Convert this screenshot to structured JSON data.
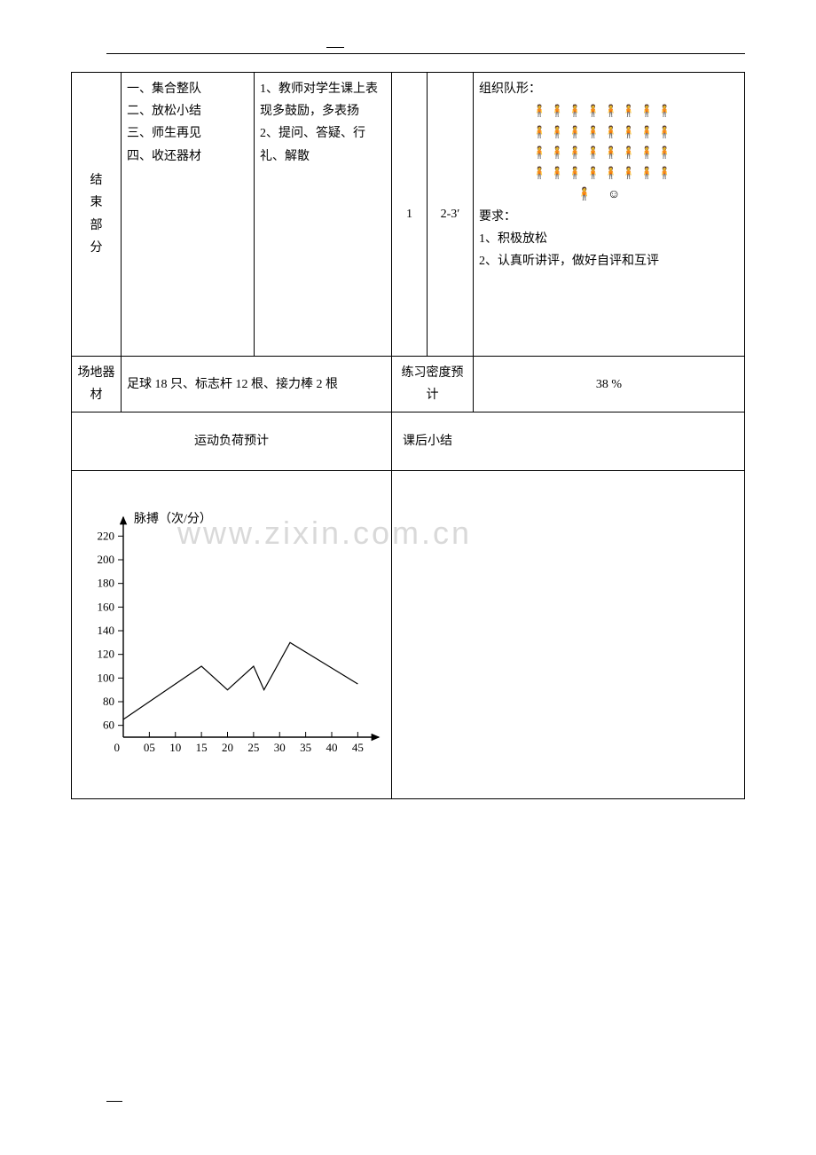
{
  "watermark": "www.zixin.com.cn",
  "row1": {
    "section_label": [
      "结",
      "束",
      "部",
      "分"
    ],
    "col2_lines": [
      "一、集合整队",
      "二、放松小结",
      "三、师生再见",
      "四、收还器材"
    ],
    "col3_lines": [
      "1、教师对学生课上表现多鼓励，多表扬",
      "2、提问、答疑、行礼、解散"
    ],
    "col4": "1",
    "col5": "2-3′",
    "formation_title": "组织队形：",
    "formation_rows": 4,
    "formation_per_row": 8,
    "person_glyph": "🧍",
    "teacher_glyph": "🧍",
    "face_glyph": "☺",
    "req_title": "要求：",
    "req_lines": [
      "1、积极放松",
      "2、认真听讲评，做好自评和互评"
    ]
  },
  "row2": {
    "label_left": "场地器材",
    "equipment": "足球 18 只、标志杆 12 根、接力棒 2 根",
    "label_mid": "练习密度预计",
    "density": "38 %"
  },
  "row3": {
    "label_left": "运动负荷预计",
    "label_right": "课后小结"
  },
  "chart": {
    "type": "line",
    "y_axis_label": "脉搏（次/分）",
    "y_ticks": [
      60,
      80,
      100,
      120,
      140,
      160,
      180,
      200,
      220
    ],
    "x_ticks": [
      0,
      "05",
      10,
      15,
      20,
      25,
      30,
      35,
      40,
      45
    ],
    "ylim": [
      50,
      230
    ],
    "xlim": [
      0,
      48
    ],
    "points": [
      {
        "x": 0,
        "y": 65
      },
      {
        "x": 15,
        "y": 110
      },
      {
        "x": 20,
        "y": 90
      },
      {
        "x": 25,
        "y": 110
      },
      {
        "x": 27,
        "y": 90
      },
      {
        "x": 32,
        "y": 130
      },
      {
        "x": 45,
        "y": 95
      }
    ],
    "line_color": "#000000",
    "line_width": 1.2,
    "axis_color": "#000000",
    "tick_fontsize": 13,
    "label_fontsize": 14,
    "background_color": "#ffffff"
  }
}
